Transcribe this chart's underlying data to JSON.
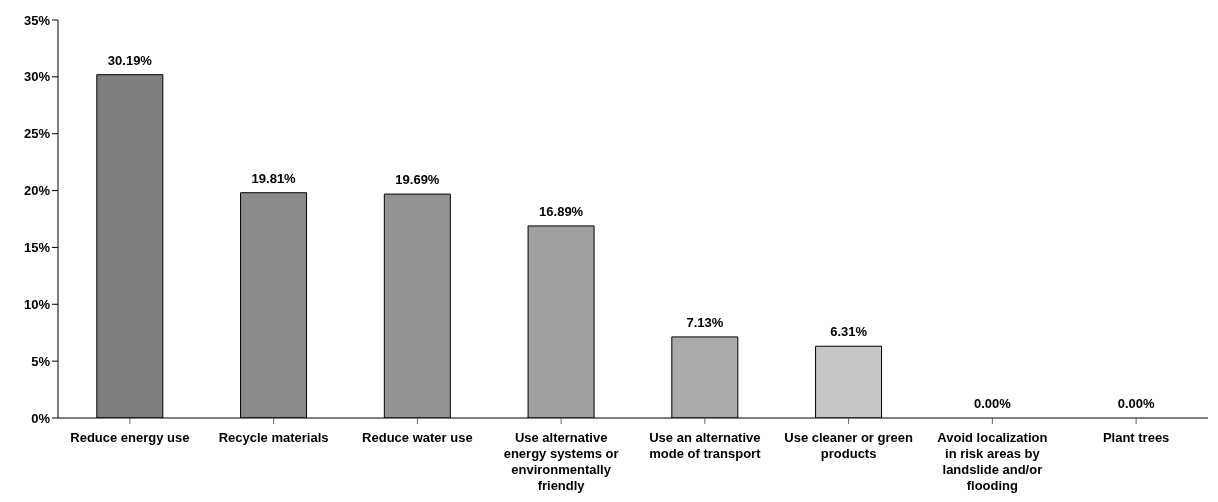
{
  "chart_data": {
    "type": "bar",
    "categories": [
      "Reduce energy use",
      "Recycle materials",
      "Reduce water use",
      "Use alternative energy systems or environmentally friendly",
      "Use an alternative mode of transport",
      "Use cleaner or green products",
      "Avoid localization in risk areas by landslide and/or flooding",
      "Plant trees"
    ],
    "values": [
      30.19,
      19.81,
      19.69,
      16.89,
      7.13,
      6.31,
      0,
      0
    ],
    "value_labels": [
      "30.19%",
      "19.81%",
      "19.69%",
      "16.89%",
      "7.13%",
      "6.31%",
      "0.00%",
      "0.00%"
    ],
    "colors": [
      "#7f7f7f",
      "#8a8a8a",
      "#949494",
      "#a0a0a0",
      "#aaaaaa",
      "#c6c6c6",
      "#d0d0d0",
      "#d8d8d8"
    ],
    "ylim": [
      0,
      35
    ],
    "yticks": [
      {
        "value": 0,
        "label": "0%"
      },
      {
        "value": 5,
        "label": "5%"
      },
      {
        "value": 10,
        "label": "10%"
      },
      {
        "value": 15,
        "label": "15%"
      },
      {
        "value": 20,
        "label": "20%"
      },
      {
        "value": 25,
        "label": "25%"
      },
      {
        "value": 30,
        "label": "30%"
      },
      {
        "value": 35,
        "label": "35%"
      }
    ],
    "grid": false,
    "legend": false
  }
}
